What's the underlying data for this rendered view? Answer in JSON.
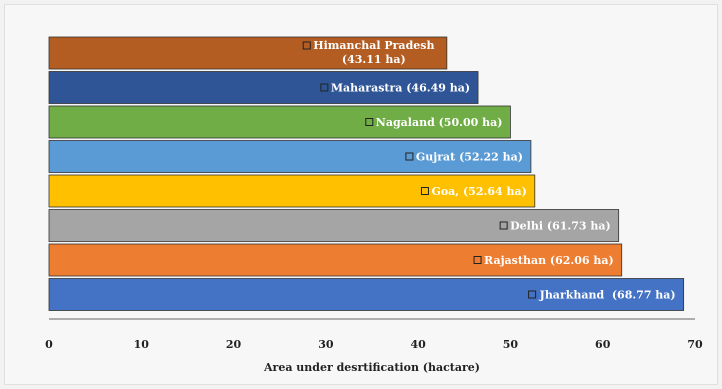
{
  "chart_data": {
    "type": "bar",
    "orientation": "horizontal",
    "categories": [
      "Himanchal Pradesh",
      "Maharastra",
      "Nagaland",
      "Gujrat",
      "Goa",
      "Delhi",
      "Rajasthan",
      "Jharkhand"
    ],
    "values": [
      43.11,
      46.49,
      50.0,
      52.22,
      52.64,
      61.73,
      62.06,
      68.77
    ],
    "data_labels": [
      "Himanchal Pradesh (43.11 ha)",
      "Maharastra (46.49 ha)",
      "Nagaland (50.00 ha)",
      "Gujrat (52.22 ha)",
      "Goa, (52.64 ha)",
      "Delhi (61.73 ha)",
      "Rajasthan (62.06 ha)",
      "Jharkhand  (68.77 ha)"
    ],
    "colors": [
      "#b35d22",
      "#2f5597",
      "#70ad47",
      "#5b9bd5",
      "#ffc000",
      "#a5a5a5",
      "#ed7d31",
      "#4472c4"
    ],
    "xlabel": "Area under desrtification (hactare)",
    "ylabel": "",
    "title": "",
    "xlim": [
      0,
      70
    ],
    "xticks": [
      0,
      10,
      20,
      30,
      40,
      50,
      60,
      70
    ],
    "grid": false
  }
}
